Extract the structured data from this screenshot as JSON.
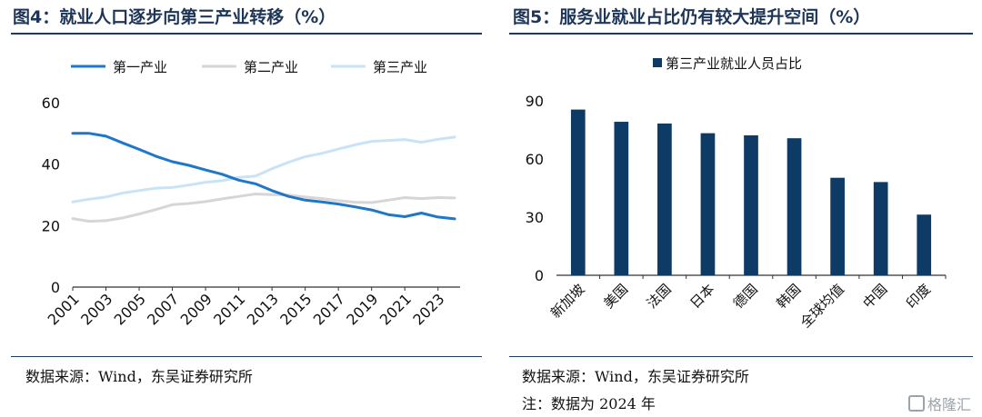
{
  "left": {
    "title": "图4：就业人口逐步向第三产业转移（%）",
    "source": "数据来源：Wind，东吴证券研究所",
    "chart_data": {
      "type": "line",
      "x": [
        2001,
        2002,
        2003,
        2004,
        2005,
        2006,
        2007,
        2008,
        2009,
        2010,
        2011,
        2012,
        2013,
        2014,
        2015,
        2016,
        2017,
        2018,
        2019,
        2020,
        2021,
        2022,
        2023,
        2024
      ],
      "x_tick_labels": [
        "2001",
        "2003",
        "2005",
        "2007",
        "2009",
        "2011",
        "2013",
        "2015",
        "2017",
        "2019",
        "2021",
        "2023"
      ],
      "ylim": [
        0,
        60
      ],
      "y_ticks": [
        0,
        20,
        40,
        60
      ],
      "legend_position": "top",
      "series": [
        {
          "name": "第一产业",
          "color": "#1f77c9",
          "width": 3,
          "values": [
            50.0,
            50.0,
            49.1,
            46.9,
            44.8,
            42.6,
            40.8,
            39.6,
            38.1,
            36.7,
            34.8,
            33.6,
            31.4,
            29.5,
            28.3,
            27.7,
            27.0,
            26.1,
            25.1,
            23.6,
            22.9,
            24.1,
            22.8,
            22.2
          ]
        },
        {
          "name": "第二产业",
          "color": "#d6d6d6",
          "width": 3,
          "values": [
            22.3,
            21.4,
            21.6,
            22.5,
            23.8,
            25.2,
            26.8,
            27.2,
            27.8,
            28.7,
            29.5,
            30.3,
            30.1,
            29.9,
            29.3,
            28.8,
            28.1,
            27.6,
            27.5,
            28.3,
            29.1,
            28.8,
            29.1,
            29.0
          ]
        },
        {
          "name": "第三产业",
          "color": "#c9e3f6",
          "width": 3,
          "values": [
            27.7,
            28.6,
            29.3,
            30.6,
            31.4,
            32.2,
            32.4,
            33.2,
            34.1,
            34.6,
            35.7,
            36.1,
            38.5,
            40.6,
            42.4,
            43.5,
            44.9,
            46.3,
            47.4,
            47.7,
            48.0,
            47.1,
            48.1,
            48.8
          ]
        }
      ]
    }
  },
  "right": {
    "title": "图5：服务业就业占比仍有较大提升空间（%）",
    "source": "数据来源：Wind，东吴证券研究所",
    "note": "注：数据为 2024 年",
    "chart_data": {
      "type": "bar",
      "categories": [
        "新加坡",
        "美国",
        "法国",
        "日本",
        "德国",
        "韩国",
        "全球均值",
        "中国",
        "印度"
      ],
      "series": [
        {
          "name": "第三产业就业人员占比",
          "values": [
            85.5,
            79.2,
            78.3,
            73.3,
            72.2,
            70.7,
            50.3,
            48.1,
            31.3
          ]
        }
      ],
      "ylim": [
        0,
        90
      ],
      "y_ticks": [
        0,
        30,
        60,
        90
      ],
      "bar_color": "#0d3b66",
      "legend_position": "top"
    }
  },
  "watermark": "格隆汇"
}
